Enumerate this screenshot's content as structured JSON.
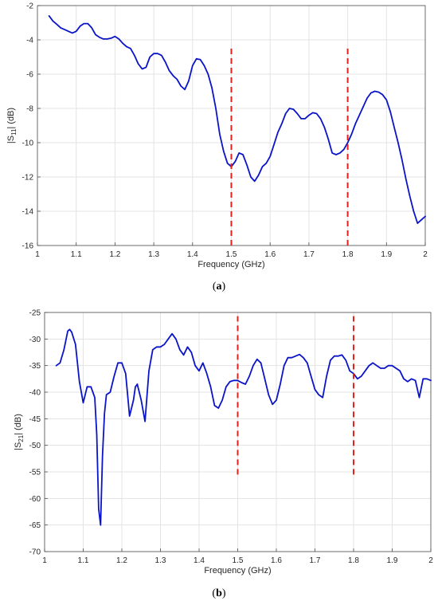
{
  "colors": {
    "curve": "#0a14c8",
    "marker_line": "#e8201a",
    "grid": "#e3e3e3",
    "axis": "#4d4d4d"
  },
  "captions": {
    "a_label": "a",
    "b_label": "b"
  },
  "chart_data": [
    {
      "type": "line",
      "panel": "a",
      "xlabel": "Frequency (GHz)",
      "ylabel_main": "|S",
      "ylabel_sub": "11",
      "ylabel_tail": "| (dB)",
      "xlim": [
        1,
        2
      ],
      "ylim": [
        -16,
        -2
      ],
      "xticks": [
        1,
        1.1,
        1.2,
        1.3,
        1.4,
        1.5,
        1.6,
        1.7,
        1.8,
        1.9,
        2
      ],
      "yticks": [
        -16,
        -14,
        -12,
        -10,
        -8,
        -6,
        -4,
        -2
      ],
      "grid": true,
      "markers": [
        {
          "x": 1.5,
          "y_from": -16,
          "y_to": -4.5
        },
        {
          "x": 1.8,
          "y_from": -16,
          "y_to": -4.5
        }
      ],
      "series": [
        {
          "x": [
            1.03,
            1.04,
            1.05,
            1.06,
            1.07,
            1.08,
            1.09,
            1.1,
            1.11,
            1.12,
            1.13,
            1.14,
            1.15,
            1.16,
            1.17,
            1.18,
            1.19,
            1.2,
            1.21,
            1.22,
            1.23,
            1.24,
            1.25,
            1.26,
            1.27,
            1.28,
            1.29,
            1.3,
            1.31,
            1.32,
            1.33,
            1.34,
            1.35,
            1.36,
            1.37,
            1.38,
            1.39,
            1.4,
            1.41,
            1.42,
            1.43,
            1.44,
            1.45,
            1.46,
            1.47,
            1.48,
            1.49,
            1.5,
            1.51,
            1.52,
            1.53,
            1.54,
            1.55,
            1.56,
            1.57,
            1.58,
            1.59,
            1.6,
            1.61,
            1.62,
            1.63,
            1.64,
            1.65,
            1.66,
            1.67,
            1.68,
            1.69,
            1.7,
            1.71,
            1.72,
            1.73,
            1.74,
            1.75,
            1.76,
            1.77,
            1.78,
            1.79,
            1.8,
            1.81,
            1.82,
            1.83,
            1.84,
            1.85,
            1.86,
            1.87,
            1.88,
            1.89,
            1.9,
            1.91,
            1.92,
            1.93,
            1.94,
            1.95,
            1.96,
            1.97,
            1.98,
            1.99,
            2.0
          ],
          "y": [
            -2.6,
            -2.9,
            -3.1,
            -3.3,
            -3.4,
            -3.5,
            -3.6,
            -3.5,
            -3.2,
            -3.05,
            -3.05,
            -3.3,
            -3.7,
            -3.85,
            -3.95,
            -3.95,
            -3.9,
            -3.8,
            -3.95,
            -4.2,
            -4.4,
            -4.5,
            -4.9,
            -5.4,
            -5.7,
            -5.6,
            -5.0,
            -4.8,
            -4.8,
            -4.9,
            -5.3,
            -5.8,
            -6.1,
            -6.3,
            -6.7,
            -6.9,
            -6.4,
            -5.5,
            -5.1,
            -5.15,
            -5.5,
            -6.0,
            -6.8,
            -8.0,
            -9.5,
            -10.5,
            -11.2,
            -11.4,
            -11.1,
            -10.6,
            -10.7,
            -11.3,
            -12.0,
            -12.25,
            -11.9,
            -11.4,
            -11.2,
            -10.8,
            -10.1,
            -9.4,
            -8.9,
            -8.3,
            -8.0,
            -8.05,
            -8.3,
            -8.6,
            -8.6,
            -8.4,
            -8.25,
            -8.3,
            -8.6,
            -9.1,
            -9.8,
            -10.6,
            -10.7,
            -10.6,
            -10.4,
            -10.0,
            -9.5,
            -8.9,
            -8.4,
            -7.9,
            -7.4,
            -7.1,
            -7.0,
            -7.05,
            -7.2,
            -7.5,
            -8.2,
            -9.1,
            -10.0,
            -11.0,
            -12.1,
            -13.1,
            -14.0,
            -14.7,
            -14.5,
            -14.3
          ]
        }
      ]
    },
    {
      "type": "line",
      "panel": "b",
      "xlabel": "Frequency (GHz)",
      "ylabel_main": "|S",
      "ylabel_sub": "21",
      "ylabel_tail": "| (dB)",
      "xlim": [
        1,
        2
      ],
      "ylim": [
        -70,
        -25
      ],
      "xticks": [
        1,
        1.1,
        1.2,
        1.3,
        1.4,
        1.5,
        1.6,
        1.7,
        1.8,
        1.9,
        2
      ],
      "yticks": [
        -70,
        -65,
        -60,
        -55,
        -50,
        -45,
        -40,
        -35,
        -30,
        -25
      ],
      "grid": true,
      "markers": [
        {
          "x": 1.5,
          "y_from": -55.5,
          "y_to": -25.7
        },
        {
          "x": 1.8,
          "y_from": -55.5,
          "y_to": -25.7
        }
      ],
      "series": [
        {
          "x": [
            1.03,
            1.04,
            1.05,
            1.06,
            1.065,
            1.07,
            1.08,
            1.09,
            1.1,
            1.11,
            1.12,
            1.13,
            1.135,
            1.14,
            1.145,
            1.15,
            1.155,
            1.16,
            1.17,
            1.18,
            1.19,
            1.2,
            1.21,
            1.22,
            1.23,
            1.235,
            1.24,
            1.25,
            1.26,
            1.27,
            1.28,
            1.29,
            1.3,
            1.31,
            1.32,
            1.33,
            1.34,
            1.35,
            1.36,
            1.37,
            1.38,
            1.39,
            1.4,
            1.41,
            1.42,
            1.43,
            1.44,
            1.45,
            1.46,
            1.47,
            1.48,
            1.49,
            1.5,
            1.51,
            1.52,
            1.53,
            1.54,
            1.55,
            1.56,
            1.57,
            1.58,
            1.59,
            1.6,
            1.61,
            1.62,
            1.63,
            1.64,
            1.65,
            1.66,
            1.67,
            1.68,
            1.69,
            1.7,
            1.71,
            1.72,
            1.73,
            1.74,
            1.75,
            1.76,
            1.77,
            1.78,
            1.79,
            1.8,
            1.81,
            1.82,
            1.83,
            1.84,
            1.85,
            1.86,
            1.87,
            1.88,
            1.89,
            1.9,
            1.91,
            1.92,
            1.93,
            1.94,
            1.95,
            1.96,
            1.97,
            1.98,
            1.99,
            2.0
          ],
          "y": [
            -35,
            -34.5,
            -32,
            -28.5,
            -28.2,
            -28.7,
            -31,
            -38,
            -42,
            -39,
            -39,
            -41,
            -48,
            -62,
            -65,
            -52,
            -44,
            -40.5,
            -40,
            -37,
            -34.5,
            -34.5,
            -36.5,
            -44.5,
            -41.5,
            -39,
            -38.5,
            -41.5,
            -45.5,
            -36,
            -32,
            -31.5,
            -31.5,
            -31,
            -30,
            -29,
            -30,
            -32,
            -33,
            -31.5,
            -32.5,
            -35,
            -36,
            -34.5,
            -36.5,
            -39,
            -42.5,
            -43,
            -41.5,
            -39,
            -38,
            -37.8,
            -37.8,
            -38.2,
            -38.5,
            -37,
            -35,
            -33.8,
            -34.5,
            -37.5,
            -40.5,
            -42.3,
            -41.5,
            -38.5,
            -35,
            -33.5,
            -33.5,
            -33.2,
            -32.9,
            -33.5,
            -34.5,
            -37,
            -39.5,
            -40.5,
            -41,
            -37,
            -34,
            -33.2,
            -33.2,
            -33,
            -34,
            -36,
            -36.5,
            -37.5,
            -37,
            -36,
            -35,
            -34.5,
            -35,
            -35.5,
            -35.5,
            -35,
            -35,
            -35.5,
            -36,
            -37.5,
            -38,
            -37.5,
            -37.8,
            -41,
            -37.5,
            -37.5,
            -37.8
          ]
        }
      ]
    }
  ]
}
